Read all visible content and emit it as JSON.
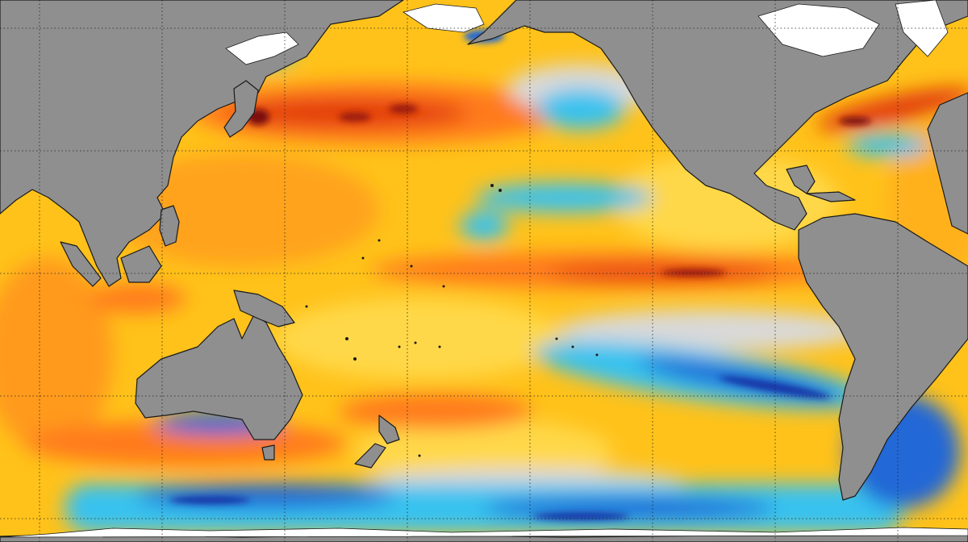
{
  "map": {
    "type": "sea-surface-temperature-anomaly",
    "projection": "equirectangular",
    "center": "pacific",
    "graticule": "dotted",
    "colors": {
      "land": "#8f8f8f",
      "land_outline": "#1a1a1a",
      "ice": "#ffffff",
      "neutral": "#d9d9d9",
      "warm_light": "#ffe94d",
      "warm": "#ffc21a",
      "warm_strong": "#ff7a1a",
      "hot": "#e23a10",
      "very_hot": "#7a0f08",
      "cool": "#39c2ef",
      "cold": "#2468d6",
      "very_cold": "#1435a6",
      "graticule": "#222222"
    },
    "features": [
      "el-nino-equatorial-warm-band",
      "north-pacific-warm-band",
      "south-pacific-cool-band",
      "southern-ocean-cool-band",
      "gulf-stream-warm-anomaly"
    ]
  }
}
